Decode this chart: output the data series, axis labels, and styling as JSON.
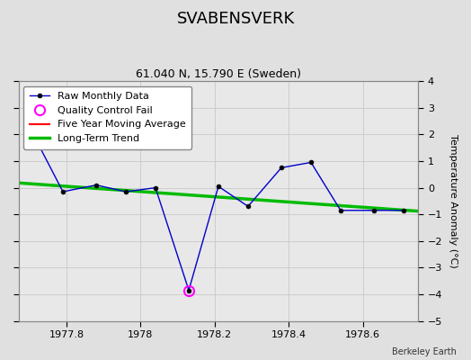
{
  "title": "SVABENSVERK",
  "subtitle": "61.040 N, 15.790 E (Sweden)",
  "attribution": "Berkeley Earth",
  "xlim": [
    1977.67,
    1978.75
  ],
  "ylim": [
    -5,
    4
  ],
  "yticks": [
    -5,
    -4,
    -3,
    -2,
    -1,
    0,
    1,
    2,
    3,
    4
  ],
  "xticks": [
    1977.8,
    1978.0,
    1978.2,
    1978.4,
    1978.6
  ],
  "xticklabels": [
    "1977.8",
    "1978",
    "1978.2",
    "1978.4",
    "1978.6"
  ],
  "ylabel": "Temperature Anomaly (°C)",
  "raw_x": [
    1977.71,
    1977.79,
    1977.88,
    1977.96,
    1978.04,
    1978.13,
    1978.21,
    1978.29,
    1978.38,
    1978.46,
    1978.54,
    1978.63,
    1978.71
  ],
  "raw_y": [
    2.0,
    -0.15,
    0.1,
    -0.15,
    0.0,
    -3.85,
    0.05,
    -0.7,
    0.75,
    0.95,
    -0.85,
    -0.85,
    -0.85
  ],
  "qc_fail_x": [
    1978.13
  ],
  "qc_fail_y": [
    -3.85
  ],
  "trend_x": [
    1977.67,
    1978.75
  ],
  "trend_y": [
    0.18,
    -0.88
  ],
  "raw_line_color": "#0000cc",
  "raw_marker_facecolor": "#000000",
  "raw_marker_edgecolor": "#000000",
  "qc_color": "#ff00ff",
  "trend_color": "#00bb00",
  "moving_avg_color": "#ff0000",
  "bg_color": "#e0e0e0",
  "plot_bg_color": "#e8e8e8",
  "grid_color": "#c8c8c8",
  "title_fontsize": 13,
  "subtitle_fontsize": 9,
  "label_fontsize": 8,
  "tick_fontsize": 8,
  "legend_fontsize": 8
}
